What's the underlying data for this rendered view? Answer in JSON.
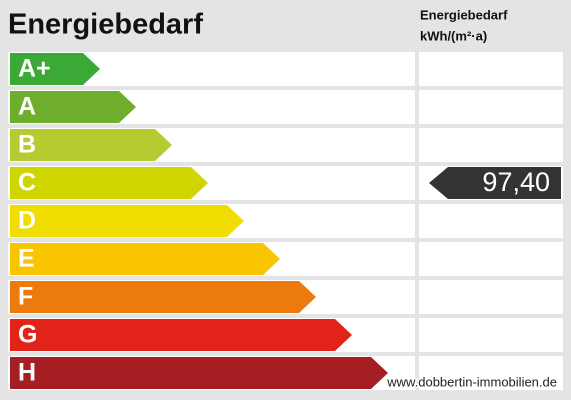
{
  "header": {
    "title": "Energiebedarf",
    "unit_title": "Energiebedarf",
    "unit": "kWh/(m²·a)"
  },
  "classes": [
    {
      "label": "A+",
      "color": "#3aa935"
    },
    {
      "label": "A",
      "color": "#6fae2c"
    },
    {
      "label": "B",
      "color": "#b5cb2f"
    },
    {
      "label": "C",
      "color": "#cfd500",
      "value": "97,40"
    },
    {
      "label": "D",
      "color": "#f0de00"
    },
    {
      "label": "E",
      "color": "#f9c400"
    },
    {
      "label": "F",
      "color": "#ec7a0c"
    },
    {
      "label": "G",
      "color": "#e2231a"
    },
    {
      "label": "H",
      "color": "#a51e24"
    }
  ],
  "watermark": "www.dobbertin-immobilien.de"
}
